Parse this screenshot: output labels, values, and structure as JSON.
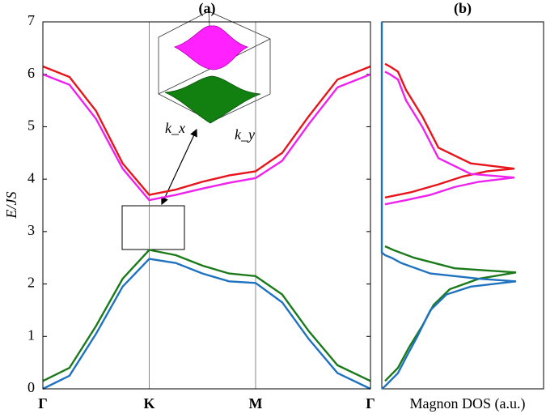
{
  "chart_data": [
    {
      "type": "line",
      "title": "(a)",
      "ylabel": "E/JS",
      "x": [
        0,
        0.25,
        0.5,
        0.75,
        1,
        1.25,
        1.5,
        1.75,
        2,
        2.25,
        2.5,
        2.77,
        3.08
      ],
      "series": [
        {
          "color": "#e8141b",
          "values": [
            6.15,
            5.95,
            5.3,
            4.3,
            3.7,
            3.8,
            3.95,
            4.07,
            4.15,
            4.5,
            5.2,
            5.9,
            6.15
          ]
        },
        {
          "color": "#ee22ee",
          "values": [
            6.0,
            5.8,
            5.15,
            4.2,
            3.6,
            3.7,
            3.82,
            3.93,
            4.02,
            4.35,
            5.05,
            5.75,
            6.0
          ]
        },
        {
          "color": "#1a7a1a",
          "values": [
            0.15,
            0.4,
            1.2,
            2.1,
            2.65,
            2.55,
            2.35,
            2.2,
            2.15,
            1.8,
            1.1,
            0.45,
            0.15
          ]
        },
        {
          "color": "#1f72bf",
          "values": [
            0.0,
            0.25,
            1.05,
            1.95,
            2.48,
            2.4,
            2.2,
            2.05,
            2.02,
            1.65,
            0.95,
            0.3,
            0.0
          ]
        }
      ],
      "xlim": [
        0,
        3.08
      ],
      "xticks": [
        {
          "value": 0,
          "label": "Γ"
        },
        {
          "value": 1,
          "label": "K"
        },
        {
          "value": 2,
          "label": "M"
        },
        {
          "value": 3.08,
          "label": "Γ"
        }
      ],
      "ylim": [
        0,
        7
      ],
      "yticks": [
        0,
        1,
        2,
        3,
        4,
        5,
        6,
        7
      ],
      "annotations": [
        "k_x",
        "k_y"
      ]
    },
    {
      "type": "dos",
      "title": "(b)",
      "xlabel": "Magnon DOS (a.u.)",
      "series": [
        {
          "color": "#e8141b",
          "x": [
            0.02,
            0.18,
            0.35,
            0.5,
            0.65,
            0.82,
            0.55,
            0.35,
            0.25,
            0.15,
            0.1,
            0.05,
            0.02
          ],
          "values": [
            3.65,
            3.75,
            3.9,
            4.05,
            4.15,
            4.2,
            4.3,
            4.6,
            5.2,
            5.7,
            6.05,
            6.15,
            6.2
          ]
        },
        {
          "color": "#ee22ee",
          "x": [
            0.02,
            0.15,
            0.3,
            0.45,
            0.6,
            0.82,
            0.55,
            0.35,
            0.25,
            0.15,
            0.1,
            0.05,
            0.02
          ],
          "values": [
            3.52,
            3.6,
            3.7,
            3.85,
            3.95,
            4.03,
            4.1,
            4.4,
            5.0,
            5.5,
            5.9,
            6.0,
            6.05
          ]
        },
        {
          "color": "#1a7a1a",
          "x": [
            0.02,
            0.1,
            0.17,
            0.25,
            0.32,
            0.42,
            0.6,
            0.83,
            0.45,
            0.2,
            0.07,
            0.02
          ],
          "values": [
            0.15,
            0.4,
            0.8,
            1.2,
            1.6,
            1.9,
            2.1,
            2.22,
            2.3,
            2.5,
            2.65,
            2.72
          ]
        },
        {
          "color": "#1f72bf",
          "x": [
            0,
            0.02,
            0.1,
            0.15,
            0.22,
            0.3,
            0.4,
            0.55,
            0.83,
            0.6,
            0.3,
            0.12,
            0.06,
            0.02,
            0,
            0
          ],
          "values": [
            0,
            0.05,
            0.3,
            0.6,
            1.0,
            1.5,
            1.8,
            1.95,
            2.05,
            2.1,
            2.2,
            2.4,
            2.5,
            2.55,
            2.6,
            7
          ]
        }
      ],
      "xlim": [
        0,
        1
      ],
      "ylim": [
        0,
        7
      ]
    }
  ]
}
